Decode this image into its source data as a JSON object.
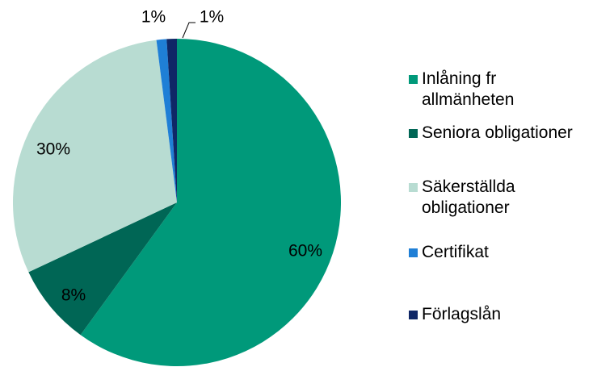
{
  "chart_data": {
    "type": "pie",
    "categories": [
      "Inlåning fr allmänheten",
      "Seniora obligationer",
      "Säkerställda obligationer",
      "Certifikat",
      "Förlagslån"
    ],
    "values": [
      60,
      8,
      30,
      1,
      1
    ],
    "value_labels": [
      "60%",
      "8%",
      "30%",
      "1%",
      "1%"
    ],
    "colors": [
      "#00997a",
      "#006655",
      "#b8dcd2",
      "#1f7fd6",
      "#0f2766"
    ],
    "legend": "right"
  }
}
